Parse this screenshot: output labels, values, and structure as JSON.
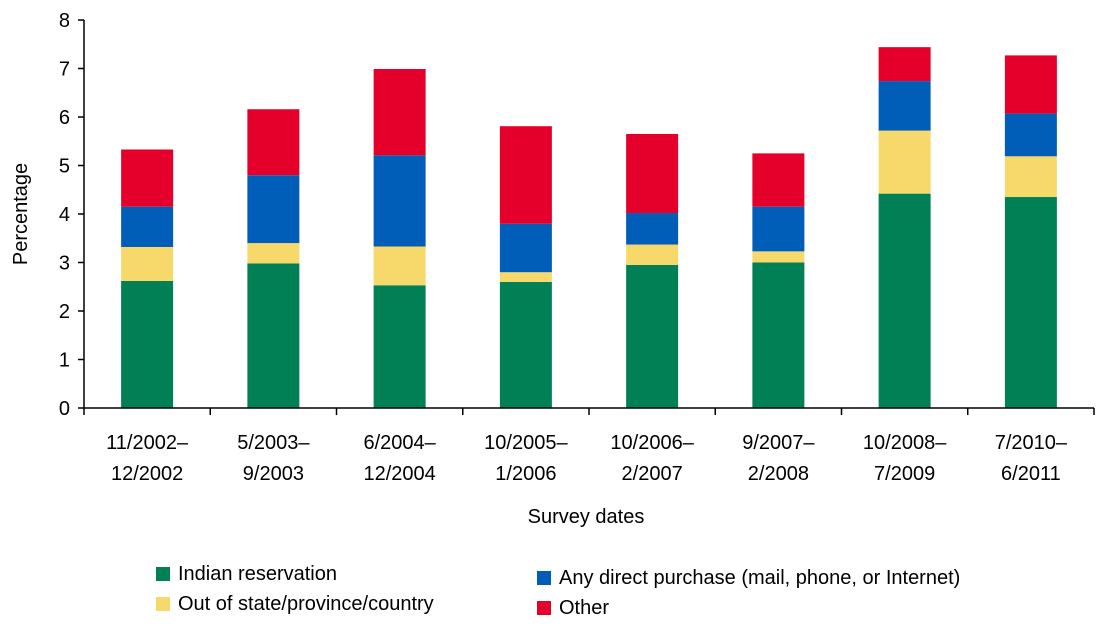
{
  "chart_data": {
    "type": "bar",
    "stacked": true,
    "title": "",
    "xlabel": "Survey dates",
    "ylabel": "Percentage",
    "ylim": [
      0,
      8
    ],
    "yticks": [
      "0",
      "1",
      "2",
      "3",
      "4",
      "5",
      "6",
      "7",
      "8"
    ],
    "grid": false,
    "legend_position": "bottom",
    "categories": [
      [
        "11/2002–",
        "12/2002"
      ],
      [
        "5/2003–",
        "9/2003"
      ],
      [
        "6/2004–",
        "12/2004"
      ],
      [
        "10/2005–",
        "1/2006"
      ],
      [
        "10/2006–",
        "2/2007"
      ],
      [
        "9/2007–",
        "2/2008"
      ],
      [
        "10/2008–",
        "7/2009"
      ],
      [
        "7/2010–",
        "6/2011"
      ]
    ],
    "series": [
      {
        "name": "Indian reservation",
        "color": "#008054",
        "values": [
          2.62,
          2.98,
          2.53,
          2.6,
          2.95,
          3.0,
          4.42,
          4.35
        ]
      },
      {
        "name": "Out of state/province/country",
        "color": "#F6D96A",
        "values": [
          0.7,
          0.42,
          0.8,
          0.2,
          0.42,
          0.23,
          1.3,
          0.84
        ]
      },
      {
        "name": "Any direct purchase (mail, phone, or Internet)",
        "color": "#005EB8",
        "values": [
          0.83,
          1.4,
          1.88,
          1.0,
          0.65,
          0.92,
          1.02,
          0.88
        ]
      },
      {
        "name": "Other",
        "color": "#E4002B",
        "values": [
          1.18,
          1.36,
          1.78,
          2.01,
          1.63,
          1.1,
          0.7,
          1.2
        ]
      }
    ]
  }
}
